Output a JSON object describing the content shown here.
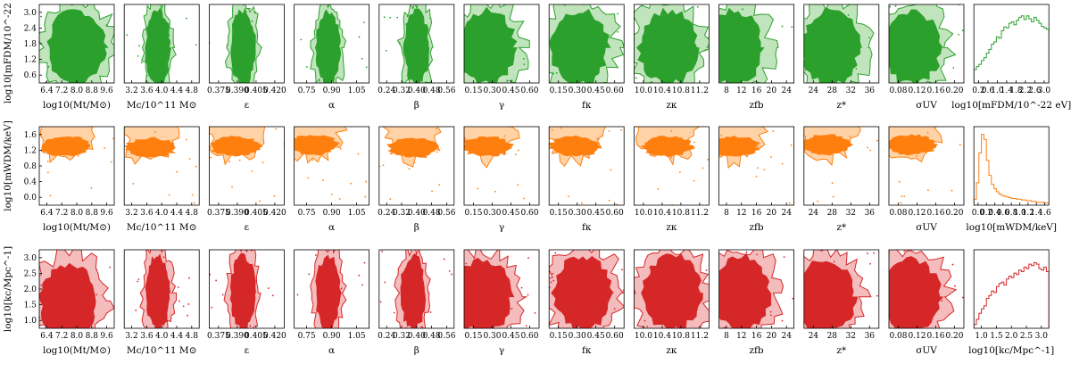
{
  "figure": {
    "type": "corner-row-grid",
    "rows": [
      {
        "key": "fdm",
        "ylabel": "log10[mFDM/10^-22 eV]",
        "color_dark": "#2ca02c",
        "color_light": "#c0e4bb",
        "ylim": [
          0.2,
          3.0
        ],
        "yticks": [
          "0.6",
          "1.2",
          "1.8",
          "2.4",
          "3.0"
        ],
        "hist_xlabel": "log10[mFDM/10^-22 eV]",
        "hist_xlim": [
          0.2,
          3.0
        ],
        "hist_xticks": [
          "0.2",
          "0.6",
          "1.0",
          "1.4",
          "1.8",
          "2.2",
          "2.6",
          "3.0"
        ],
        "hist": [
          0.18,
          0.22,
          0.25,
          0.3,
          0.34,
          0.4,
          0.45,
          0.52,
          0.55,
          0.62,
          0.6,
          0.7,
          0.75,
          0.74,
          0.8,
          0.82,
          0.78,
          0.84,
          0.88,
          0.9,
          0.85,
          0.9,
          0.86,
          0.82,
          0.88,
          0.84,
          0.8,
          0.76,
          0.74,
          0.72
        ]
      },
      {
        "key": "wdm",
        "ylabel": "log10[mWDM/keV]",
        "color_dark": "#ff7f0e",
        "color_light": "#ffd3a6",
        "ylim": [
          0.0,
          1.6
        ],
        "yticks": [
          "0.0",
          "0.4",
          "0.8",
          "1.2",
          "1.6"
        ],
        "hist_xlabel": "log10[mWDM/keV]",
        "hist_xlim": [
          0.0,
          1.6
        ],
        "hist_xticks": [
          "0.0",
          "0.2",
          "0.4",
          "0.6",
          "0.8",
          "1.0",
          "1.2",
          "1.4",
          "1.6"
        ],
        "hist": [
          0.08,
          0.3,
          0.7,
          0.95,
          0.88,
          0.6,
          0.4,
          0.28,
          0.22,
          0.18,
          0.15,
          0.13,
          0.12,
          0.11,
          0.1,
          0.09,
          0.09,
          0.08,
          0.08,
          0.07,
          0.07,
          0.06,
          0.06,
          0.05,
          0.05,
          0.04,
          0.04,
          0.04,
          0.03,
          0.03
        ]
      },
      {
        "key": "kc",
        "ylabel": "log10[kc/Mpc^-1]",
        "color_dark": "#d62728",
        "color_light": "#f4bcbc",
        "ylim": [
          1.0,
          3.0
        ],
        "yticks": [
          "1.0",
          "1.5",
          "2.0",
          "2.5",
          "3.0"
        ],
        "hist_xlabel": "log10[kc/Mpc^-1]",
        "hist_xlim": [
          1.0,
          3.0
        ],
        "hist_xticks": [
          "1.0",
          "1.5",
          "2.0",
          "2.5",
          "3.0"
        ],
        "hist": [
          0.05,
          0.12,
          0.2,
          0.26,
          0.3,
          0.4,
          0.44,
          0.5,
          0.48,
          0.56,
          0.6,
          0.62,
          0.58,
          0.66,
          0.7,
          0.68,
          0.74,
          0.72,
          0.78,
          0.76,
          0.82,
          0.8,
          0.86,
          0.84,
          0.88,
          0.86,
          0.8,
          0.78,
          0.82,
          0.76
        ]
      }
    ],
    "columns": [
      {
        "xlabel": "log10(Mt/M⊙)",
        "xticks": [
          "6.4",
          "7.2",
          "8.0",
          "8.8",
          "9.6"
        ]
      },
      {
        "xlabel": "Mc/10^11 M⊙",
        "xticks": [
          "3.2",
          "3.6",
          "4.0",
          "4.4",
          "4.8"
        ]
      },
      {
        "xlabel": "ε",
        "xticks": [
          "0.375",
          "0.390",
          "0.405",
          "0.420"
        ]
      },
      {
        "xlabel": "α",
        "xticks": [
          "0.75",
          "0.90",
          "1.05"
        ]
      },
      {
        "xlabel": "β",
        "xticks": [
          "0.24",
          "0.32",
          "0.40",
          "0.48",
          "0.56"
        ]
      },
      {
        "xlabel": "γ",
        "xticks": [
          "0.15",
          "0.30",
          "0.45",
          "0.60"
        ]
      },
      {
        "xlabel": "fκ",
        "xticks": [
          "0.15",
          "0.30",
          "0.45",
          "0.60"
        ]
      },
      {
        "xlabel": "zκ",
        "xticks": [
          "10.0",
          "10.4",
          "10.8",
          "11.2"
        ]
      },
      {
        "xlabel": "zfb",
        "xticks": [
          "8",
          "12",
          "16",
          "20",
          "24"
        ]
      },
      {
        "xlabel": "z*",
        "xticks": [
          "24",
          "28",
          "32",
          "36"
        ]
      },
      {
        "xlabel": "σUV",
        "xticks": [
          "0.08",
          "0.12",
          "0.16",
          "0.20"
        ]
      }
    ]
  },
  "chart_data": {
    "type": "heatmap",
    "description_of_content": "2D posterior contours (68% dark, 95% light) of three dark-matter parameters against 11 astrophysical parameters, plus 1D marginal histograms",
    "row_parameters": [
      "log10[mFDM/10^-22 eV]",
      "log10[mWDM/keV]",
      "log10[kc/Mpc^-1]"
    ],
    "column_parameters": [
      "log10(Mt/M⊙)",
      "Mc/10^11 M⊙",
      "ε",
      "α",
      "β",
      "γ",
      "fκ",
      "zκ",
      "zfb",
      "z*",
      "σUV"
    ],
    "ylims": {
      "fdm": [
        0.2,
        3.0
      ],
      "wdm": [
        0.0,
        1.6
      ],
      "kc": [
        1.0,
        3.0
      ]
    },
    "histograms": {
      "fdm": {
        "x_range": [
          0.2,
          3.0
        ],
        "bins": 30
      },
      "wdm": {
        "x_range": [
          0.0,
          1.6
        ],
        "bins": 30
      },
      "kc": {
        "x_range": [
          1.0,
          3.0
        ],
        "bins": 30
      }
    },
    "contour_centres": {
      "fdm": [
        [
          0.5,
          0.55
        ],
        [
          0.45,
          0.55
        ],
        [
          0.45,
          0.55
        ],
        [
          0.45,
          0.55
        ],
        [
          0.5,
          0.55
        ],
        [
          0.3,
          0.55
        ],
        [
          0.4,
          0.55
        ],
        [
          0.45,
          0.55
        ],
        [
          0.2,
          0.55
        ],
        [
          0.35,
          0.55
        ],
        [
          0.3,
          0.55
        ]
      ],
      "wdm": [
        [
          0.35,
          0.2
        ],
        [
          0.35,
          0.22
        ],
        [
          0.35,
          0.2
        ],
        [
          0.25,
          0.18
        ],
        [
          0.45,
          0.22
        ],
        [
          0.3,
          0.2
        ],
        [
          0.35,
          0.2
        ],
        [
          0.45,
          0.2
        ],
        [
          0.2,
          0.2
        ],
        [
          0.3,
          0.18
        ],
        [
          0.3,
          0.18
        ]
      ],
      "kc": [
        [
          0.4,
          0.65
        ],
        [
          0.45,
          0.55
        ],
        [
          0.45,
          0.55
        ],
        [
          0.45,
          0.55
        ],
        [
          0.45,
          0.55
        ],
        [
          0.25,
          0.6
        ],
        [
          0.45,
          0.55
        ],
        [
          0.5,
          0.55
        ],
        [
          0.3,
          0.55
        ],
        [
          0.3,
          0.6
        ],
        [
          0.3,
          0.6
        ]
      ]
    }
  }
}
